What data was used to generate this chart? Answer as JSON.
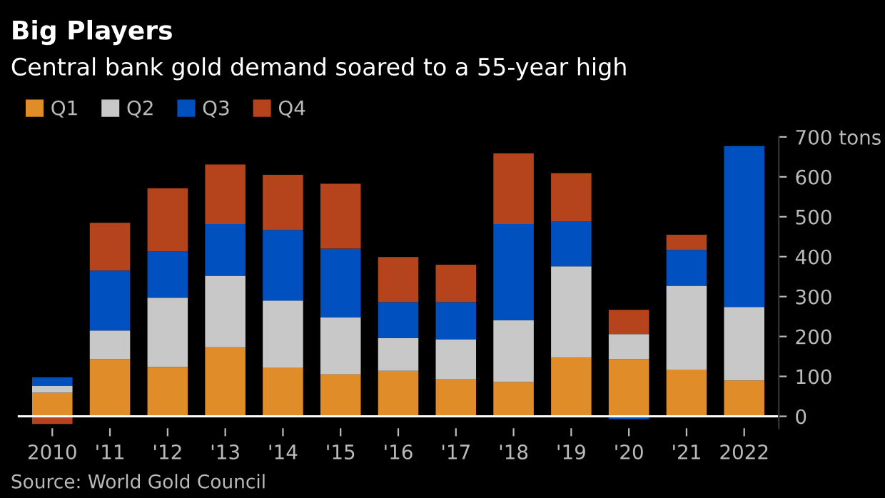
{
  "chart_data": {
    "type": "bar",
    "stacked": true,
    "title": "Big Players",
    "subtitle": "Central bank gold demand soared to a 55-year high",
    "categories": [
      "2010",
      "'11",
      "'12",
      "'13",
      "'14",
      "'15",
      "'16",
      "'17",
      "'18",
      "'19",
      "'20",
      "'21",
      "2022"
    ],
    "series": [
      {
        "name": "Q1",
        "color": "#e08c28",
        "values": [
          59,
          143,
          124,
          173,
          121,
          105,
          114,
          94,
          86,
          147,
          143,
          117,
          90
        ]
      },
      {
        "name": "Q2",
        "color": "#c8c8c8",
        "values": [
          17,
          72,
          173,
          179,
          169,
          143,
          82,
          99,
          155,
          229,
          63,
          210,
          184
        ]
      },
      {
        "name": "Q3",
        "color": "#0050c0",
        "values": [
          22,
          150,
          116,
          130,
          177,
          172,
          90,
          93,
          241,
          113,
          -7,
          90,
          403
        ]
      },
      {
        "name": "Q4",
        "color": "#b5441c",
        "values": [
          -19,
          120,
          158,
          149,
          138,
          163,
          113,
          94,
          177,
          120,
          61,
          38,
          null
        ]
      }
    ],
    "ylim": [
      -30,
      700
    ],
    "yticks": [
      0,
      100,
      200,
      300,
      400,
      500,
      600,
      {
        "value": 700,
        "label": "700 tons"
      }
    ],
    "grid": false,
    "legend": "top left",
    "annotations": [
      "Source: World Gold Council"
    ]
  }
}
